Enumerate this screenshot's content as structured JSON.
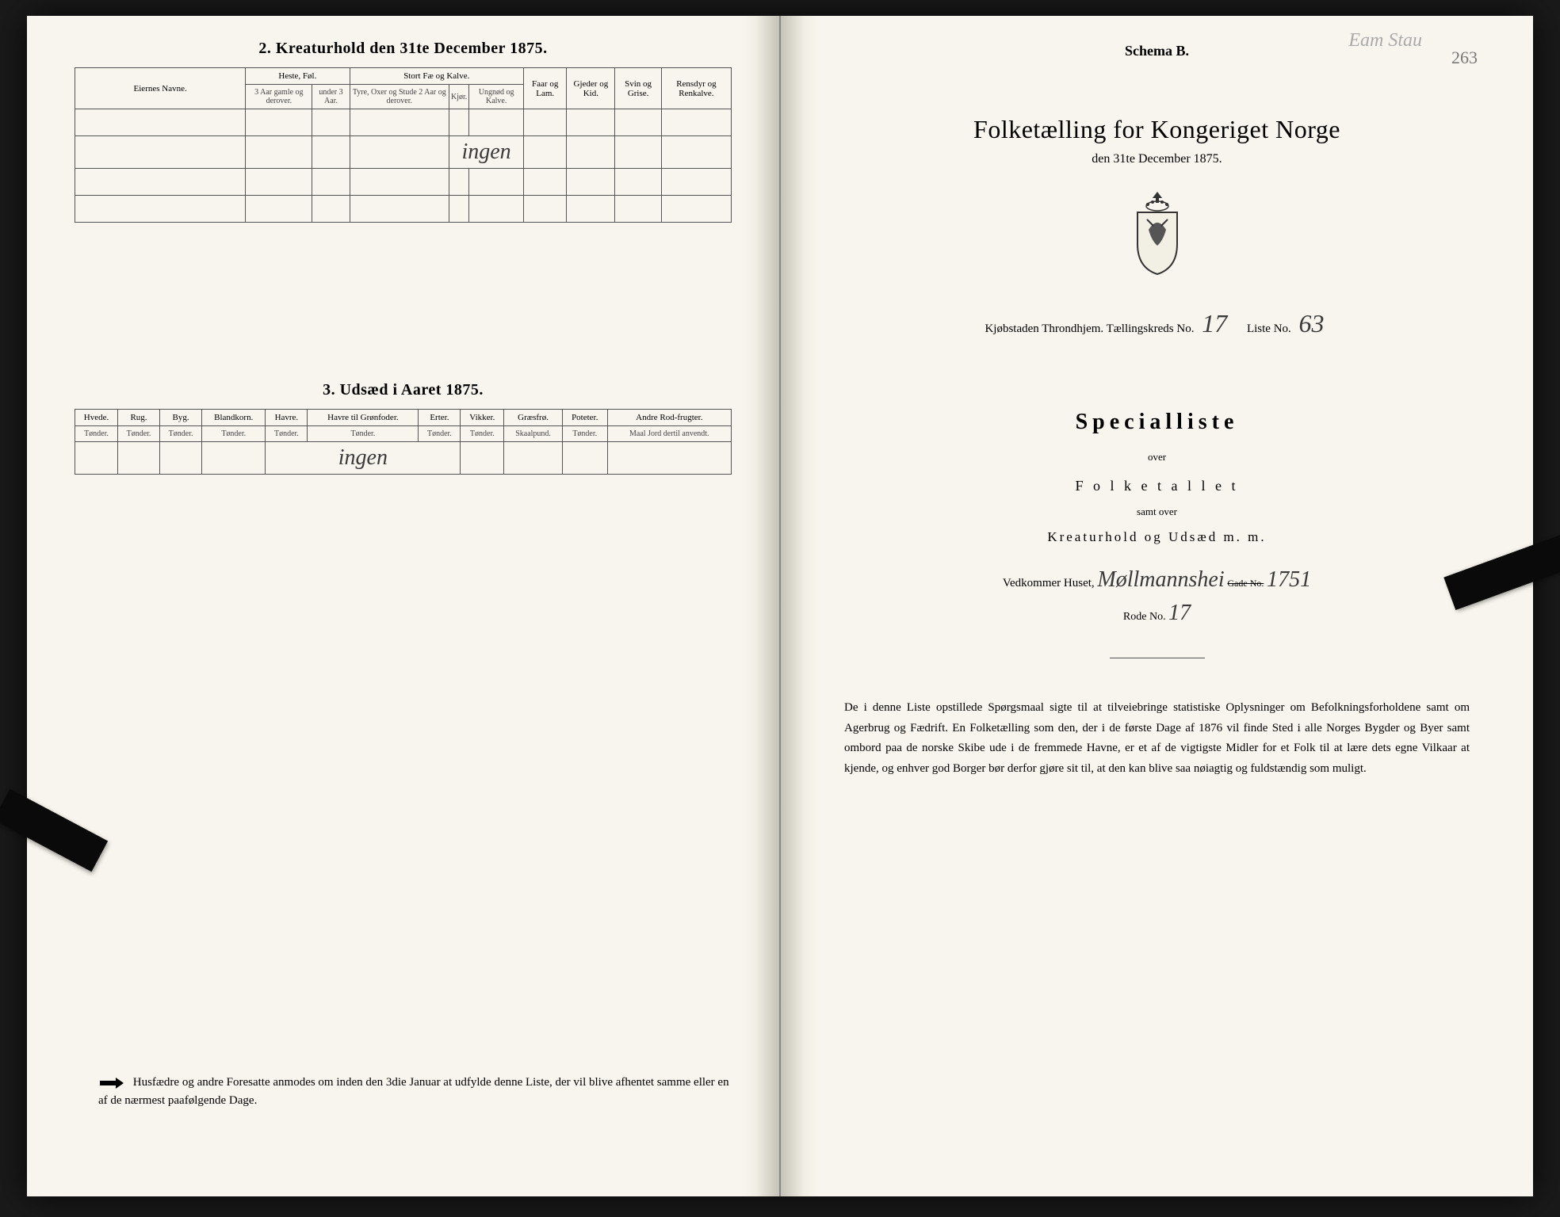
{
  "left": {
    "section2_title": "2.  Kreaturhold den 31te December 1875.",
    "table2": {
      "col_eier": "Eiernes Navne.",
      "grp_heste": "Heste, Føl.",
      "heste_a": "3 Aar gamle og derover.",
      "heste_b": "under 3 Aar.",
      "grp_stort": "Stort Fæ og Kalve.",
      "stort_a": "Tyre, Oxer og Stude 2 Aar og derover.",
      "stort_b": "Kjør.",
      "stort_c": "Ungnød og Kalve.",
      "col_faar": "Faar og Lam.",
      "col_gjed": "Gjeder og Kid.",
      "col_svin": "Svin og Grise.",
      "col_rens": "Rensdyr og Renkalve.",
      "entry": "ingen"
    },
    "section3_title": "3.  Udsæd i Aaret 1875.",
    "table3": {
      "cols": [
        {
          "h": "Hvede.",
          "s": "Tønder."
        },
        {
          "h": "Rug.",
          "s": "Tønder."
        },
        {
          "h": "Byg.",
          "s": "Tønder."
        },
        {
          "h": "Blandkorn.",
          "s": "Tønder."
        },
        {
          "h": "Havre.",
          "s": "Tønder."
        },
        {
          "h": "Havre til Grønfoder.",
          "s": "Tønder."
        },
        {
          "h": "Erter.",
          "s": "Tønder."
        },
        {
          "h": "Vikker.",
          "s": "Tønder."
        },
        {
          "h": "Græsfrø.",
          "s": "Skaalpund."
        },
        {
          "h": "Poteter.",
          "s": "Tønder."
        },
        {
          "h": "Andre Rod-frugter.",
          "s": "Maal Jord dertil anvendt."
        }
      ],
      "entry": "ingen"
    },
    "footer": "Husfædre og andre Foresatte anmodes om inden den 3die Januar at udfylde denne Liste, der vil blive afhentet samme eller en af de nærmest paafølgende Dage."
  },
  "right": {
    "top_cursive": "Eam Stau",
    "page_num": "263",
    "schema": "Schema B.",
    "main_title": "Folketælling for Kongeriget Norge",
    "sub_date": "den 31te December 1875.",
    "id_prefix": "Kjøbstaden Throndhjem.    Tællingskreds No.",
    "id_kreds": "17",
    "id_liste_label": "Liste No.",
    "id_liste": "63",
    "special": "Specialliste",
    "over": "over",
    "folketallet": "F o l k e t a l l e t",
    "samt": "samt over",
    "kreatur": "Kreaturhold  og  Udsæd  m. m.",
    "vedk_label": "Vedkommer Huset,",
    "vedk_value": "Møllmannshei",
    "gade_label": "Gade No.",
    "gade_value": "1751",
    "rode_label": "Rode No.",
    "rode_value": "17",
    "footer": "De i denne Liste opstillede Spørgsmaal sigte til at tilveiebringe statistiske Oplysninger om Befolkningsforholdene samt om Agerbrug og Fædrift.  En Folketælling som den, der i de første Dage af 1876 vil finde Sted i alle Norges Bygder og Byer samt ombord paa de norske Skibe ude i de fremmede Havne, er et af de vigtigste Midler for et Folk til at lære dets egne Vilkaar at kjende, og enhver god Borger bør derfor gjøre sit til, at den kan blive saa nøiagtig og fuldstændig som muligt."
  }
}
